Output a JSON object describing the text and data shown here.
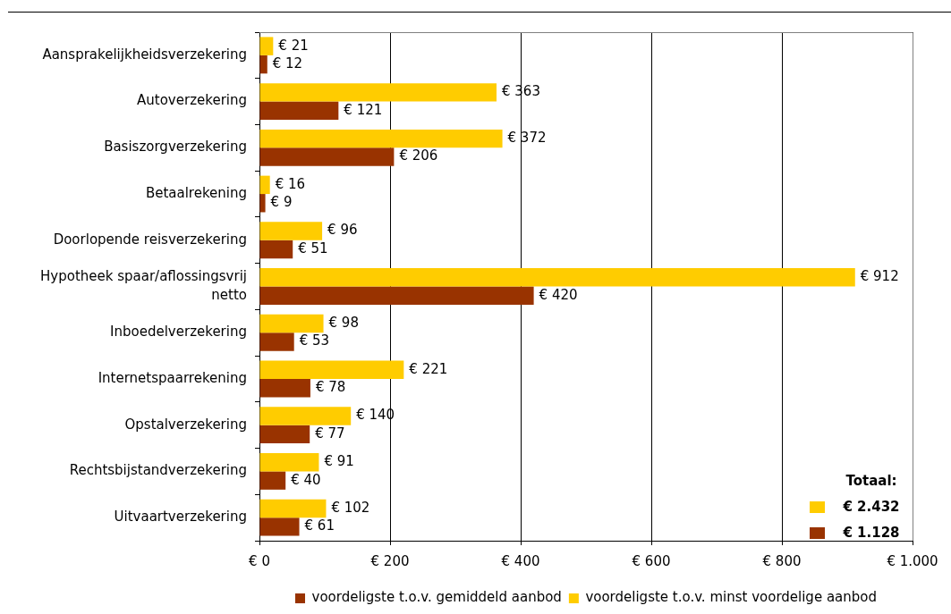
{
  "chart_data": {
    "type": "bar",
    "orientation": "horizontal",
    "categories": [
      "Aansprakelijkheidsverzekering",
      "Autoverzekering",
      "Basiszorgverzekering",
      "Betaalrekening",
      "Doorlopende reisverzekering",
      "Hypotheek spaar/aflossingsvrij netto",
      "Inboedelverzekering",
      "Internetspaarrekening",
      "Opstalverzekering",
      "Rechtsbijstandverzekering",
      "Uitvaartverzekering"
    ],
    "series": [
      {
        "name": "voordeligste t.o.v. minst voordelige aanbod",
        "color": "#ffcc00",
        "values": [
          21,
          363,
          372,
          16,
          96,
          912,
          98,
          221,
          140,
          91,
          102
        ],
        "value_labels": [
          "€ 21",
          "€ 363",
          "€ 372",
          "€ 16",
          "€ 96",
          "€ 912",
          "€ 98",
          "€ 221",
          "€ 140",
          "€ 91",
          "€ 102"
        ]
      },
      {
        "name": "voordeligste t.o.v. gemiddeld aanbod",
        "color": "#993300",
        "values": [
          12,
          121,
          206,
          9,
          51,
          420,
          53,
          78,
          77,
          40,
          61
        ],
        "value_labels": [
          "€ 12",
          "€ 121",
          "€ 206",
          "€ 9",
          "€ 51",
          "€ 420",
          "€ 53",
          "€ 78",
          "€ 77",
          "€ 40",
          "€ 61"
        ]
      }
    ],
    "xlim": [
      0,
      1000
    ],
    "xticks": [
      {
        "value": 0,
        "label": "€ 0"
      },
      {
        "value": 200,
        "label": "€ 200"
      },
      {
        "value": 400,
        "label": "€ 400"
      },
      {
        "value": 600,
        "label": "€ 600"
      },
      {
        "value": 800,
        "label": "€ 800"
      },
      {
        "value": 1000,
        "label": "€ 1.000"
      }
    ],
    "grid": "x",
    "legend": "bottom",
    "annotations": [
      "Totaal:",
      "€ 2.432",
      "€ 1.128"
    ]
  }
}
